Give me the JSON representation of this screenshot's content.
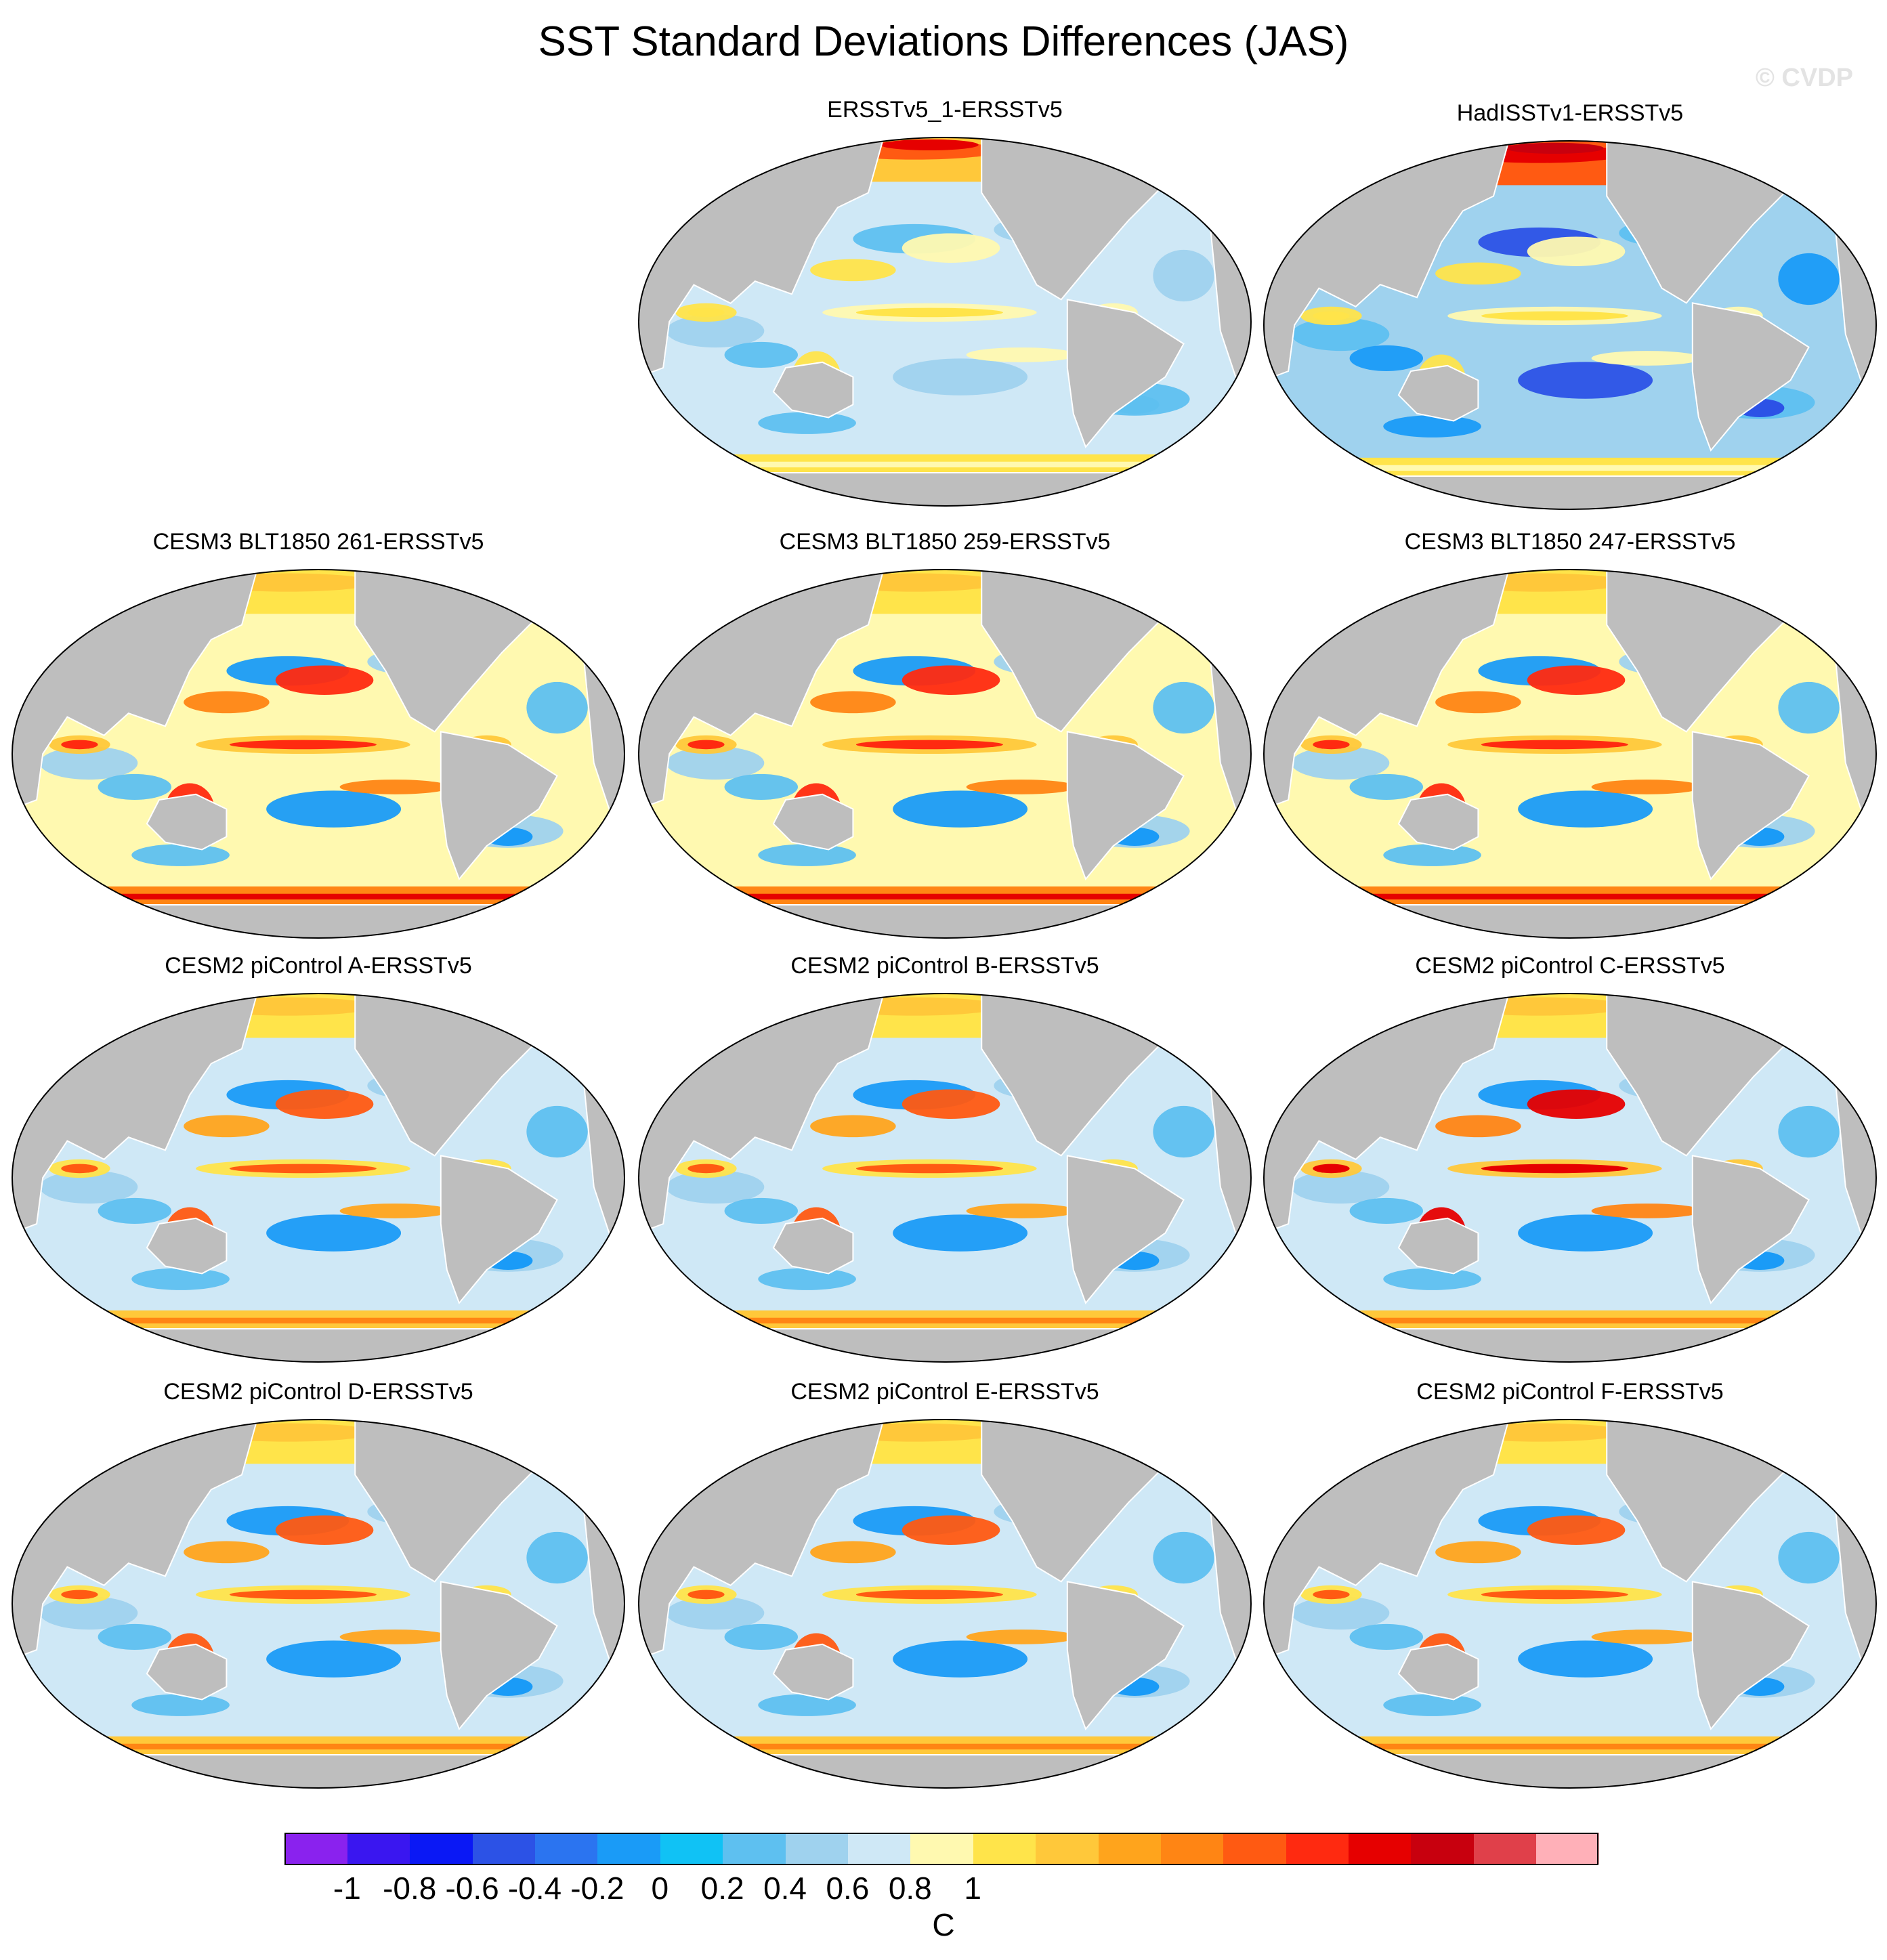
{
  "title": "SST Standard Deviations Differences (JAS)",
  "watermark": "© CVDP",
  "panels": [
    {
      "title": "ERSSTv5_1-ERSSTv5",
      "scheme": "weak"
    },
    {
      "title": "HadISSTv1-ERSSTv5",
      "scheme": "negative"
    },
    {
      "title": "CESM3 BLT1850 261-ERSSTv5",
      "scheme": "strong"
    },
    {
      "title": "CESM3 BLT1850 259-ERSSTv5",
      "scheme": "strong"
    },
    {
      "title": "CESM3 BLT1850 247-ERSSTv5",
      "scheme": "strong"
    },
    {
      "title": "CESM2 piControl A-ERSSTv5",
      "scheme": "moderate"
    },
    {
      "title": "CESM2 piControl B-ERSSTv5",
      "scheme": "moderate"
    },
    {
      "title": "CESM2 piControl C-ERSSTv5",
      "scheme": "moderate-strong"
    },
    {
      "title": "CESM2 piControl D-ERSSTv5",
      "scheme": "moderate"
    },
    {
      "title": "CESM2 piControl E-ERSSTv5",
      "scheme": "moderate"
    },
    {
      "title": "CESM2 piControl F-ERSSTv5",
      "scheme": "moderate"
    }
  ],
  "colorbar": {
    "units": "C",
    "tick_labels": [
      "-1",
      "-0.8",
      "-0.6",
      "-0.4",
      "-0.2",
      "0",
      "0.2",
      "0.4",
      "0.6",
      "0.8",
      "1"
    ],
    "colors": [
      "#8a22ee",
      "#3a16f0",
      "#0a18f5",
      "#2c52e6",
      "#2b74f0",
      "#1a9bf7",
      "#10c2f5",
      "#5ec0f0",
      "#9fd2ee",
      "#cfe8f6",
      "#fff9b0",
      "#ffe44a",
      "#ffc83a",
      "#ffa41c",
      "#ff8514",
      "#ff5a12",
      "#ff2a10",
      "#e60000",
      "#c8000e",
      "#e0404a",
      "#ffb0b8"
    ]
  },
  "land_color": "#bebebe"
}
